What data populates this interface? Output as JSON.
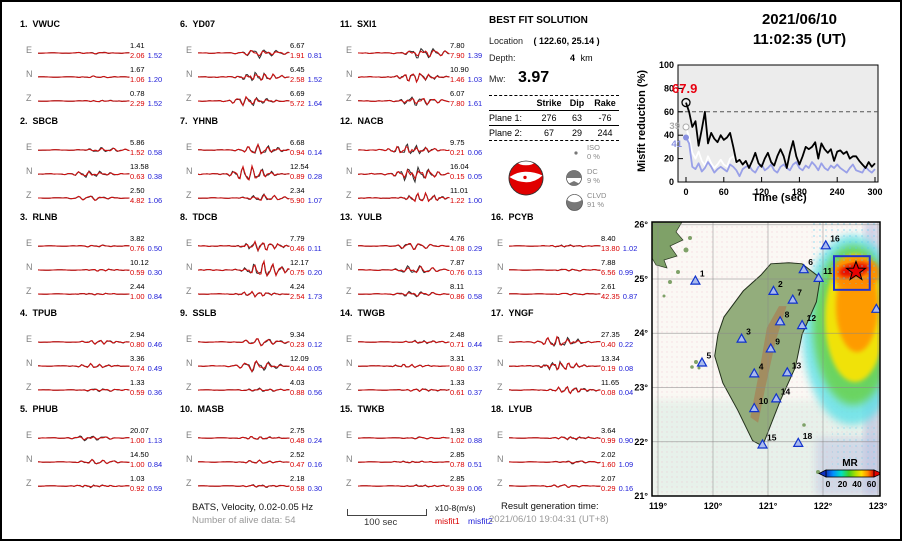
{
  "header": {
    "date": "2021/06/10",
    "time": "11:02:35  (UT)"
  },
  "waveform_panel": {
    "stations": [
      {
        "num": "1.",
        "name": "VWUC",
        "ch": [
          {
            "c": "E",
            "amp": "1.41",
            "m1": "2.06",
            "m2": "1.52",
            "w": 0.8
          },
          {
            "c": "N",
            "amp": "1.67",
            "m1": "1.06",
            "m2": "1.20",
            "w": 0.7
          },
          {
            "c": "Z",
            "amp": "0.78",
            "m1": "2.29",
            "m2": "1.52",
            "w": 0.6
          }
        ]
      },
      {
        "num": "2.",
        "name": "SBCB",
        "ch": [
          {
            "c": "E",
            "amp": "5.86",
            "m1": "1.52",
            "m2": "0.58",
            "w": 2.2
          },
          {
            "c": "N",
            "amp": "13.58",
            "m1": "0.63",
            "m2": "0.38",
            "w": 3.0
          },
          {
            "c": "Z",
            "amp": "2.50",
            "m1": "4.82",
            "m2": "1.06",
            "w": 2.0
          }
        ]
      },
      {
        "num": "3.",
        "name": "RLNB",
        "ch": [
          {
            "c": "E",
            "amp": "3.82",
            "m1": "0.76",
            "m2": "0.50",
            "w": 0.9
          },
          {
            "c": "N",
            "amp": "10.12",
            "m1": "0.59",
            "m2": "0.30",
            "w": 0.8
          },
          {
            "c": "Z",
            "amp": "2.44",
            "m1": "1.00",
            "m2": "0.84",
            "w": 0.7
          }
        ]
      },
      {
        "num": "4.",
        "name": "TPUB",
        "ch": [
          {
            "c": "E",
            "amp": "2.94",
            "m1": "0.80",
            "m2": "0.46",
            "w": 1.8
          },
          {
            "c": "N",
            "amp": "3.36",
            "m1": "0.74",
            "m2": "0.49",
            "w": 1.8
          },
          {
            "c": "Z",
            "amp": "1.33",
            "m1": "0.59",
            "m2": "0.36",
            "w": 1.4
          }
        ]
      },
      {
        "num": "5.",
        "name": "PHUB",
        "ch": [
          {
            "c": "E",
            "amp": "20.07",
            "m1": "1.00",
            "m2": "1.13",
            "w": 2.4
          },
          {
            "c": "N",
            "amp": "14.50",
            "m1": "1.00",
            "m2": "0.84",
            "w": 2.0
          },
          {
            "c": "Z",
            "amp": "1.03",
            "m1": "0.92",
            "m2": "0.59",
            "w": 1.2
          }
        ]
      },
      {
        "num": "6.",
        "name": "YD07",
        "ch": [
          {
            "c": "E",
            "amp": "6.67",
            "m1": "1.91",
            "m2": "0.81",
            "w": 4.0
          },
          {
            "c": "N",
            "amp": "6.45",
            "m1": "2.58",
            "m2": "1.52",
            "w": 4.2
          },
          {
            "c": "Z",
            "amp": "6.69",
            "m1": "5.72",
            "m2": "1.64",
            "w": 4.2
          }
        ]
      },
      {
        "num": "7.",
        "name": "YHNB",
        "ch": [
          {
            "c": "E",
            "amp": "6.68",
            "m1": "0.94",
            "m2": "0.14",
            "w": 4.5
          },
          {
            "c": "N",
            "amp": "12.54",
            "m1": "0.89",
            "m2": "0.28",
            "w": 6.5
          },
          {
            "c": "Z",
            "amp": "2.34",
            "m1": "5.90",
            "m2": "1.07",
            "w": 3.0
          }
        ]
      },
      {
        "num": "8.",
        "name": "TDCB",
        "ch": [
          {
            "c": "E",
            "amp": "7.79",
            "m1": "0.46",
            "m2": "0.11",
            "w": 4.2
          },
          {
            "c": "N",
            "amp": "12.17",
            "m1": "0.75",
            "m2": "0.20",
            "w": 7.0
          },
          {
            "c": "Z",
            "amp": "4.24",
            "m1": "2.54",
            "m2": "1.73",
            "w": 2.2
          }
        ]
      },
      {
        "num": "9.",
        "name": "SSLB",
        "ch": [
          {
            "c": "E",
            "amp": "9.34",
            "m1": "0.23",
            "m2": "0.12",
            "w": 3.2
          },
          {
            "c": "N",
            "amp": "12.09",
            "m1": "0.44",
            "m2": "0.05",
            "w": 5.0
          },
          {
            "c": "Z",
            "amp": "4.03",
            "m1": "0.88",
            "m2": "0.56",
            "w": 1.6
          }
        ]
      },
      {
        "num": "10.",
        "name": "MASB",
        "ch": [
          {
            "c": "E",
            "amp": "2.75",
            "m1": "0.48",
            "m2": "0.24",
            "w": 1.4
          },
          {
            "c": "N",
            "amp": "2.52",
            "m1": "0.47",
            "m2": "0.16",
            "w": 1.4
          },
          {
            "c": "Z",
            "amp": "2.18",
            "m1": "0.58",
            "m2": "0.30",
            "w": 1.3
          }
        ]
      },
      {
        "num": "11.",
        "name": "SXI1",
        "ch": [
          {
            "c": "E",
            "amp": "7.80",
            "m1": "7.90",
            "m2": "1.39",
            "w": 5.0
          },
          {
            "c": "N",
            "amp": "10.90",
            "m1": "1.46",
            "m2": "1.03",
            "w": 4.0
          },
          {
            "c": "Z",
            "amp": "6.07",
            "m1": "7.80",
            "m2": "1.61",
            "w": 4.2
          }
        ]
      },
      {
        "num": "12.",
        "name": "NACB",
        "ch": [
          {
            "c": "E",
            "amp": "9.75",
            "m1": "0.21",
            "m2": "0.06",
            "w": 5.0
          },
          {
            "c": "N",
            "amp": "16.04",
            "m1": "0.15",
            "m2": "0.05",
            "w": 7.0
          },
          {
            "c": "Z",
            "amp": "11.01",
            "m1": "1.22",
            "m2": "1.00",
            "w": 4.0
          }
        ]
      },
      {
        "num": "13.",
        "name": "YULB",
        "ch": [
          {
            "c": "E",
            "amp": "4.76",
            "m1": "1.08",
            "m2": "0.29",
            "w": 3.0
          },
          {
            "c": "N",
            "amp": "7.87",
            "m1": "0.76",
            "m2": "0.13",
            "w": 4.0
          },
          {
            "c": "Z",
            "amp": "8.11",
            "m1": "0.86",
            "m2": "0.58",
            "w": 2.6
          }
        ]
      },
      {
        "num": "14.",
        "name": "TWGB",
        "ch": [
          {
            "c": "E",
            "amp": "2.48",
            "m1": "0.71",
            "m2": "0.44",
            "w": 1.5
          },
          {
            "c": "N",
            "amp": "3.31",
            "m1": "0.80",
            "m2": "0.37",
            "w": 1.5
          },
          {
            "c": "Z",
            "amp": "1.33",
            "m1": "0.61",
            "m2": "0.37",
            "w": 1.3
          }
        ]
      },
      {
        "num": "15.",
        "name": "TWKB",
        "ch": [
          {
            "c": "E",
            "amp": "1.93",
            "m1": "1.02",
            "m2": "0.88",
            "w": 0.9
          },
          {
            "c": "N",
            "amp": "2.85",
            "m1": "0.78",
            "m2": "0.51",
            "w": 0.9
          },
          {
            "c": "Z",
            "amp": "2.85",
            "m1": "0.39",
            "m2": "0.06",
            "w": 1.0
          }
        ]
      },
      {
        "num": "16.",
        "name": "PCYB",
        "ch": [
          {
            "c": "E",
            "amp": "8.40",
            "m1": "13.80",
            "m2": "1.02",
            "w": 1.0
          },
          {
            "c": "N",
            "amp": "7.88",
            "m1": "6.56",
            "m2": "0.99",
            "w": 0.9
          },
          {
            "c": "Z",
            "amp": "2.61",
            "m1": "42.35",
            "m2": "0.87",
            "w": 0.8
          }
        ]
      },
      {
        "num": "17.",
        "name": "YNGF",
        "ch": [
          {
            "c": "E",
            "amp": "27.35",
            "m1": "0.40",
            "m2": "0.22",
            "w": 5.0
          },
          {
            "c": "N",
            "amp": "13.34",
            "m1": "0.19",
            "m2": "0.08",
            "w": 4.0
          },
          {
            "c": "Z",
            "amp": "11.65",
            "m1": "0.08",
            "m2": "0.04",
            "w": 3.0
          }
        ]
      },
      {
        "num": "18.",
        "name": "LYUB",
        "ch": [
          {
            "c": "E",
            "amp": "3.64",
            "m1": "0.99",
            "m2": "0.90",
            "w": 1.5
          },
          {
            "c": "N",
            "amp": "2.02",
            "m1": "1.60",
            "m2": "1.09",
            "w": 1.4
          },
          {
            "c": "Z",
            "amp": "2.07",
            "m1": "0.29",
            "m2": "0.16",
            "w": 1.2
          }
        ]
      }
    ],
    "footer": {
      "line1": "BATS, Velocity, 0.02-0.05 Hz",
      "line2": "Number of alive data: 54",
      "scalebar_label": "100 sec",
      "units_label": "x10-8(m/s)",
      "misfit1_label": "misfit1",
      "misfit2_label": "misfit2",
      "result_label": "Result generation time:",
      "result_value": "2021/06/10 19:04:31 (UT+8)"
    }
  },
  "best_fit": {
    "title": "BEST FIT SOLUTION",
    "location_label": "Location",
    "location_value": "( 122.60,  25.14 )",
    "depth_label": "Depth:",
    "depth_value": "4",
    "depth_unit": "km",
    "mw_label": "Mw:",
    "mw_value": "3.97",
    "col_headers": [
      "Strike",
      "Dip",
      "Rake"
    ],
    "planes": [
      {
        "label": "Plane 1:",
        "strike": "276",
        "dip": "63",
        "rake": "-76"
      },
      {
        "label": "Plane 2:",
        "strike": "67",
        "dip": "29",
        "rake": "244"
      }
    ],
    "decomposition": [
      {
        "name": "ISO",
        "pct": "0 %"
      },
      {
        "name": "DC",
        "pct": "9 %"
      },
      {
        "name": "CLVD",
        "pct": "91 %"
      }
    ]
  },
  "chart_data": {
    "type": "line",
    "title": "2021/06/10 11:02:35 (UT)",
    "xlabel": "Time (sec)",
    "ylabel": "Misfit reduction (%)",
    "xlim": [
      0,
      300
    ],
    "ylim": [
      0,
      100
    ],
    "xticks": [
      0,
      60,
      120,
      180,
      240,
      300
    ],
    "yticks": [
      0,
      20,
      40,
      60,
      80,
      100
    ],
    "dashed_line_y": 60,
    "x_step": 5,
    "annotations": [
      {
        "text": "67.9",
        "color": "#e80010"
      },
      {
        "text": "39",
        "color": "#aaaaaa"
      },
      {
        "text": "41",
        "color": "#8890e0"
      }
    ],
    "series": [
      {
        "name": "solution-white",
        "color": "#ffffff",
        "marker": "dot",
        "values": [
          47,
          38,
          25,
          20,
          26,
          18,
          14,
          22,
          16,
          12,
          15,
          19,
          15,
          13,
          20,
          22,
          16
        ]
      },
      {
        "name": "solution-blue",
        "color": "#99a0e8",
        "marker": "dot",
        "values": [
          38,
          33,
          13,
          11,
          16,
          9,
          12,
          17,
          13,
          8,
          11,
          13,
          11,
          9,
          15,
          13,
          10,
          5,
          11,
          13,
          14,
          10,
          8,
          13,
          15,
          10,
          12,
          15,
          10,
          8,
          13,
          15,
          12,
          10,
          15,
          17,
          12,
          10,
          14,
          12,
          17,
          14,
          10,
          16,
          12,
          10,
          14,
          12,
          15,
          12,
          10,
          8,
          12,
          15,
          10,
          9,
          8,
          13,
          10,
          8,
          11
        ]
      },
      {
        "name": "best-solution-black",
        "color": "#000000",
        "marker": "open-circle",
        "values": [
          67.9,
          60,
          47,
          52,
          31,
          45,
          60,
          33,
          42,
          37,
          34,
          40,
          36,
          38,
          42,
          30,
          17,
          19,
          15,
          18,
          12,
          18,
          25,
          16,
          13,
          20,
          25,
          17,
          14,
          22,
          28,
          22,
          12,
          25,
          35,
          22,
          15,
          22,
          30,
          28,
          30,
          34,
          20,
          33,
          28,
          25,
          28,
          18,
          26,
          27,
          24,
          26,
          20,
          22,
          22,
          18,
          15,
          12,
          17,
          13,
          16
        ]
      }
    ]
  },
  "map": {
    "lat_vals": [
      26,
      25,
      24,
      23,
      22,
      21
    ],
    "lon_vals": [
      119,
      120,
      121,
      122,
      123
    ],
    "epicenter": {
      "lon": 122.6,
      "lat": 25.14
    },
    "search_box": {
      "lon_min": 122.2,
      "lon_max": 122.85,
      "lat_min": 24.8,
      "lat_max": 25.42
    },
    "stations": [
      {
        "id": "1",
        "lon": 119.68,
        "lat": 24.97
      },
      {
        "id": "2",
        "lon": 121.1,
        "lat": 24.78
      },
      {
        "id": "3",
        "lon": 120.52,
        "lat": 23.9
      },
      {
        "id": "4",
        "lon": 120.75,
        "lat": 23.26
      },
      {
        "id": "5",
        "lon": 119.8,
        "lat": 23.46
      },
      {
        "id": "6",
        "lon": 121.65,
        "lat": 25.18
      },
      {
        "id": "7",
        "lon": 121.45,
        "lat": 24.62
      },
      {
        "id": "8",
        "lon": 121.22,
        "lat": 24.22
      },
      {
        "id": "9",
        "lon": 121.05,
        "lat": 23.72
      },
      {
        "id": "10",
        "lon": 120.75,
        "lat": 22.62
      },
      {
        "id": "11",
        "lon": 121.92,
        "lat": 25.02
      },
      {
        "id": "12",
        "lon": 121.62,
        "lat": 24.15
      },
      {
        "id": "13",
        "lon": 121.35,
        "lat": 23.28
      },
      {
        "id": "14",
        "lon": 121.15,
        "lat": 22.8
      },
      {
        "id": "15",
        "lon": 120.9,
        "lat": 21.95
      },
      {
        "id": "16",
        "lon": 122.05,
        "lat": 25.62
      },
      {
        "id": "17",
        "lon": 122.97,
        "lat": 24.45
      },
      {
        "id": "18",
        "lon": 121.55,
        "lat": 21.98
      }
    ],
    "colorbar": {
      "label": "MR",
      "ticks": [
        "0",
        "20",
        "40",
        "60"
      ]
    }
  }
}
